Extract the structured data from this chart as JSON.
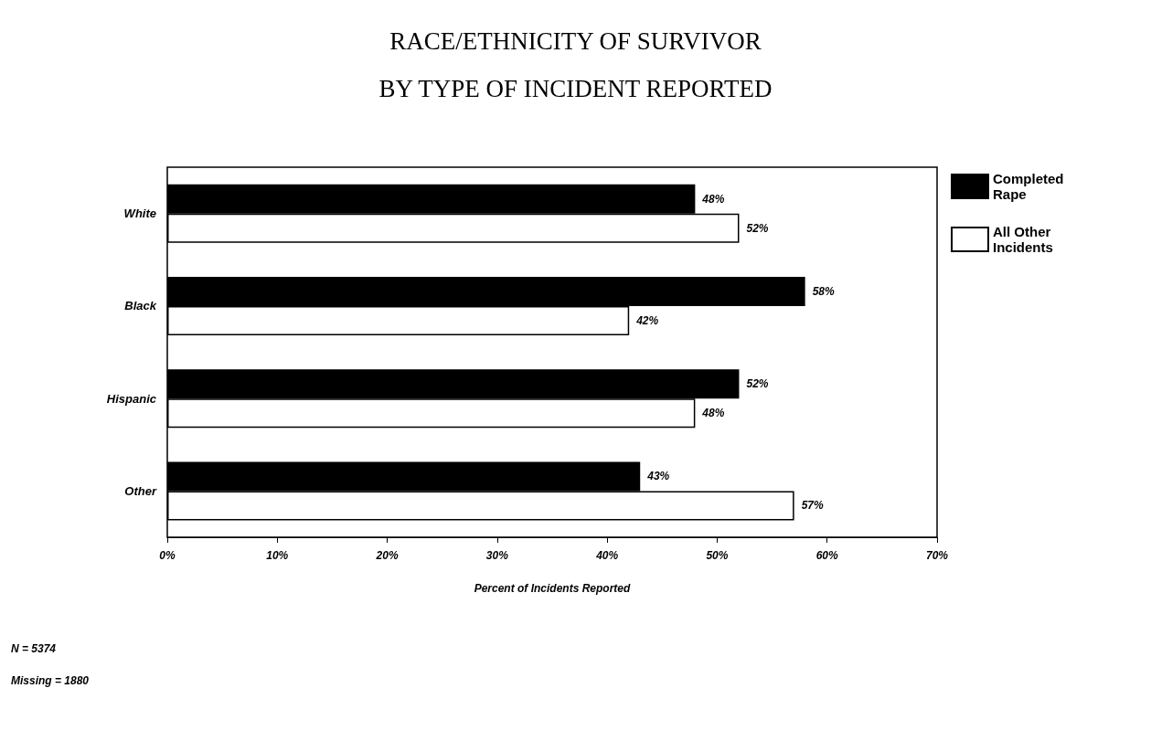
{
  "chart_data": {
    "type": "bar",
    "orientation": "horizontal",
    "title": "RACE/ETHNICITY OF SURVIVOR",
    "subtitle": "BY TYPE OF INCIDENT REPORTED",
    "xlabel": "Percent of Incidents Reported",
    "categories": [
      "White",
      "Black",
      "Hispanic",
      "Other"
    ],
    "series": [
      {
        "name": "Completed Rape",
        "color": "#000000",
        "values": [
          48,
          58,
          52,
          43
        ],
        "value_labels": [
          "48%",
          "58%",
          "52%",
          "43%"
        ]
      },
      {
        "name": "All Other Incidents",
        "color": "#ffffff",
        "values": [
          52,
          42,
          48,
          57
        ],
        "value_labels": [
          "52%",
          "42%",
          "48%",
          "57%"
        ]
      }
    ],
    "xlim": [
      0,
      70
    ],
    "xticks": [
      {
        "value": 0,
        "label": "0%"
      },
      {
        "value": 10,
        "label": "10%"
      },
      {
        "value": 20,
        "label": "20%"
      },
      {
        "value": 30,
        "label": "30%"
      },
      {
        "value": 40,
        "label": "40%"
      },
      {
        "value": 50,
        "label": "50%"
      },
      {
        "value": 60,
        "label": "60%"
      },
      {
        "value": 70,
        "label": "70%"
      }
    ],
    "legend": "right",
    "grid": false,
    "annotations": [
      "N = 5374",
      "Missing = 1880"
    ]
  }
}
